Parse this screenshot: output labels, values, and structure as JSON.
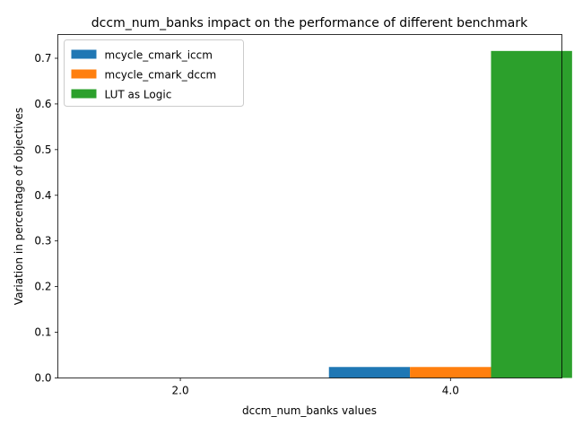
{
  "chart_data": {
    "type": "bar",
    "title": "dccm_num_banks impact on the performance of different benchmark",
    "xlabel": "dccm_num_banks values",
    "ylabel": "Variation in percentage of objectives",
    "categories": [
      "2.0",
      "4.0"
    ],
    "series": [
      {
        "name": "mcycle_cmark_iccm",
        "color": "#1f77b4",
        "values": [
          0,
          0.024
        ]
      },
      {
        "name": "mcycle_cmark_dccm",
        "color": "#ff7f0e",
        "values": [
          0,
          0.024
        ]
      },
      {
        "name": "LUT as Logic",
        "color": "#2ca02c",
        "values": [
          0,
          0.716
        ]
      }
    ],
    "ylim": [
      0,
      0.752
    ],
    "yticks": [
      0.0,
      0.1,
      0.2,
      0.3,
      0.4,
      0.5,
      0.6,
      0.7
    ],
    "ytick_labels": [
      "0.0",
      "0.1",
      "0.2",
      "0.3",
      "0.4",
      "0.5",
      "0.6",
      "0.7"
    ],
    "grid": false,
    "legend_position": "top-left"
  }
}
